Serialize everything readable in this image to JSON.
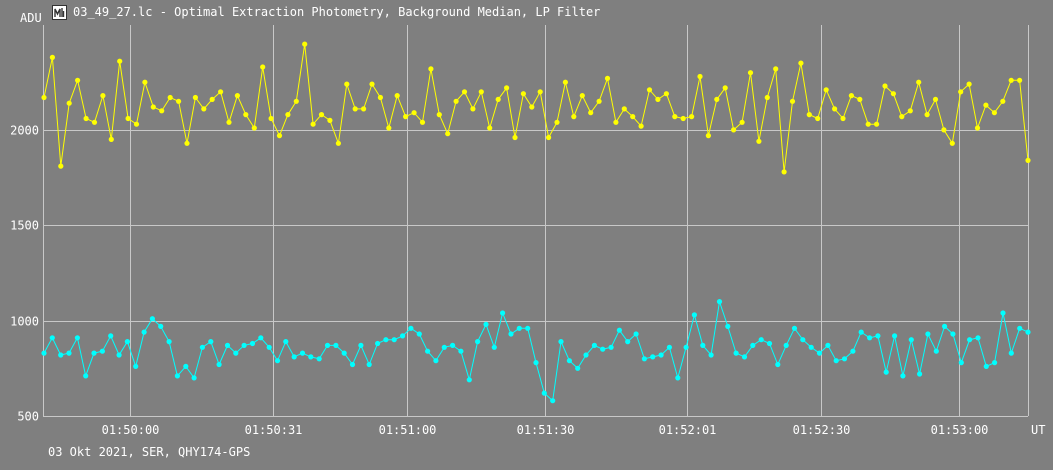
{
  "window": {
    "title": "03_49_27.lc - Optimal Extraction Photometry, Background Median, LP Filter",
    "icon": "lightcurve-app-icon"
  },
  "footer": {
    "info": "03 Okt 2021, SER, QHY174-GPS"
  },
  "colors": {
    "background": "#7f7f7f",
    "grid": "#c8c8c8",
    "series_yellow": "#ffff00",
    "series_cyan": "#00ffff",
    "text": "#ffffff"
  },
  "chart_data": {
    "type": "line",
    "title": "03_49_27.lc - Optimal Extraction Photometry, Background Median, LP Filter",
    "xlabel": "UT",
    "ylabel": "ADU",
    "ylim": [
      500,
      2550
    ],
    "x_range": [
      "01:49:41",
      "01:53:15"
    ],
    "yticks": [
      500,
      1000,
      1500,
      2000
    ],
    "xticks": [
      "01:50:00",
      "01:50:31",
      "01:51:00",
      "01:51:30",
      "01:52:01",
      "01:52:30",
      "01:53:00"
    ],
    "grid": true,
    "series": [
      {
        "color": "#ffff00",
        "values": [
          2170,
          2380,
          1810,
          2140,
          2260,
          2060,
          2040,
          2180,
          1950,
          2360,
          2060,
          2030,
          2250,
          2120,
          2100,
          2170,
          2150,
          1930,
          2170,
          2110,
          2160,
          2200,
          2040,
          2180,
          2080,
          2010,
          2330,
          2060,
          1970,
          2080,
          2150,
          2450,
          2030,
          2080,
          2050,
          1930,
          2240,
          2110,
          2110,
          2240,
          2170,
          2010,
          2180,
          2070,
          2090,
          2040,
          2320,
          2080,
          1980,
          2150,
          2200,
          2110,
          2200,
          2010,
          2160,
          2220,
          1960,
          2190,
          2120,
          2200,
          1960,
          2040,
          2250,
          2070,
          2180,
          2090,
          2150,
          2270,
          2040,
          2110,
          2070,
          2020,
          2210,
          2160,
          2190,
          2070,
          2060,
          2070,
          2280,
          1970,
          2160,
          2220,
          2000,
          2040,
          2300,
          1940,
          2170,
          2320,
          1780,
          2150,
          2350,
          2080,
          2060,
          2210,
          2110,
          2060,
          2180,
          2160,
          2030,
          2030,
          2230,
          2190,
          2070,
          2100,
          2250,
          2080,
          2160,
          2000,
          1930,
          2200,
          2240,
          2010,
          2130,
          2090,
          2150,
          2260,
          2260,
          1840
        ]
      },
      {
        "color": "#00ffff",
        "values": [
          830,
          910,
          820,
          830,
          910,
          710,
          830,
          840,
          920,
          820,
          890,
          760,
          940,
          1010,
          970,
          890,
          710,
          760,
          700,
          860,
          890,
          770,
          870,
          830,
          870,
          880,
          910,
          860,
          790,
          890,
          810,
          830,
          810,
          800,
          870,
          870,
          830,
          770,
          870,
          770,
          880,
          900,
          900,
          920,
          960,
          930,
          840,
          790,
          860,
          870,
          840,
          690,
          890,
          980,
          860,
          1040,
          930,
          960,
          960,
          780,
          620,
          580,
          890,
          790,
          750,
          820,
          870,
          850,
          860,
          950,
          890,
          930,
          800,
          810,
          820,
          860,
          700,
          860,
          1030,
          870,
          820,
          1100,
          970,
          830,
          810,
          870,
          900,
          880,
          770,
          870,
          960,
          900,
          860,
          830,
          870,
          790,
          800,
          840,
          940,
          910,
          920,
          730,
          920,
          710,
          900,
          720,
          930,
          840,
          970,
          930,
          780,
          900,
          910,
          760,
          780,
          1040,
          830,
          960,
          940
        ]
      }
    ]
  }
}
